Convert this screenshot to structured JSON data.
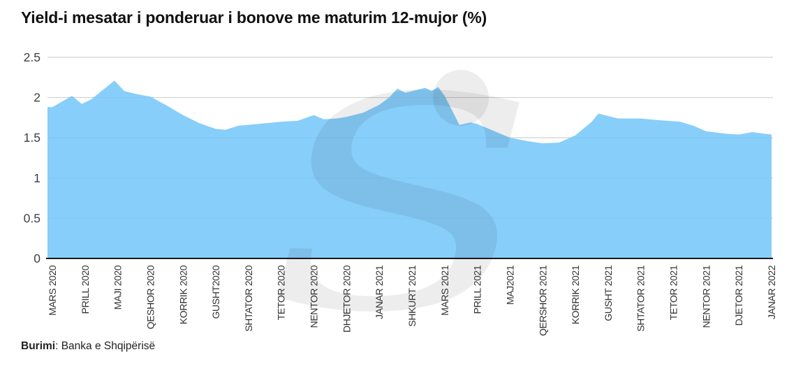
{
  "title": "Yield-i mesatar i ponderuar i bonove me maturim 12-mujor (%)",
  "source": {
    "label": "Burimi",
    "text": ": Banka e Shqipërisë"
  },
  "watermark_glyph": "S",
  "colors": {
    "area_fill": "#76C7F9",
    "gridline": "#d4d4d4",
    "axis_line": "#1a1a1a",
    "tick_text": "#404040",
    "title_text": "#111111"
  },
  "chart_data": {
    "type": "area",
    "title": "Yield-i mesatar i ponderuar i bonove me maturim 12-mujor (%)",
    "source": "Burimi: Banka e Shqipërisë",
    "grid": true,
    "legend": false,
    "ylim": [
      0,
      2.5
    ],
    "yticks": [
      0,
      0.5,
      1,
      1.5,
      2,
      2.5
    ],
    "ytick_labels": [
      "0",
      "0.5",
      "1",
      "1.5",
      "2",
      "2.5"
    ],
    "categories": [
      "MARS 2020",
      "PRILL 2020",
      "MAJI 2020",
      "QESHOR 2020",
      "KORRIK 2020",
      "GUSHT2020",
      "SHTATOR 2020",
      "TETOR 2020",
      "NENTOR 2020",
      "DHJETOR 2020",
      "JANAR 2021",
      "SHKURT 2021",
      "MARS 2021",
      "PRILL 2021",
      "MAJ2021",
      "QERSHOR 2021",
      "KORRIK 2021",
      "GUSHT 2021",
      "SHTATOR 2021",
      "TETOR 2021",
      "NENTOR 2021",
      "DJETOR 2021",
      "JANAR 2022"
    ],
    "values": [
      1.9,
      1.92,
      2.18,
      2.01,
      1.78,
      1.61,
      1.66,
      1.7,
      1.78,
      1.76,
      1.91,
      2.08,
      2.02,
      1.68,
      1.5,
      1.43,
      1.53,
      1.77,
      1.74,
      1.68,
      1.58,
      1.54,
      1.54
    ],
    "curve": [
      [
        0,
        1.88
      ],
      [
        0.3,
        1.95
      ],
      [
        0.6,
        2.02
      ],
      [
        0.9,
        1.92
      ],
      [
        1.2,
        1.98
      ],
      [
        1.5,
        2.08
      ],
      [
        1.9,
        2.21
      ],
      [
        2.2,
        2.08
      ],
      [
        2.6,
        2.04
      ],
      [
        3.0,
        2.01
      ],
      [
        3.5,
        1.9
      ],
      [
        4.0,
        1.78
      ],
      [
        4.5,
        1.68
      ],
      [
        5.0,
        1.61
      ],
      [
        5.3,
        1.6
      ],
      [
        5.7,
        1.65
      ],
      [
        6.0,
        1.66
      ],
      [
        6.5,
        1.68
      ],
      [
        7.0,
        1.7
      ],
      [
        7.5,
        1.71
      ],
      [
        8.0,
        1.78
      ],
      [
        8.3,
        1.73
      ],
      [
        8.7,
        1.74
      ],
      [
        9.0,
        1.76
      ],
      [
        9.5,
        1.81
      ],
      [
        10.0,
        1.91
      ],
      [
        10.3,
        2.0
      ],
      [
        10.55,
        2.11
      ],
      [
        10.8,
        2.06
      ],
      [
        11.1,
        2.09
      ],
      [
        11.4,
        2.12
      ],
      [
        11.6,
        2.08
      ],
      [
        11.8,
        2.13
      ],
      [
        12.0,
        2.02
      ],
      [
        12.45,
        1.66
      ],
      [
        12.8,
        1.69
      ],
      [
        13.0,
        1.67
      ],
      [
        13.3,
        1.62
      ],
      [
        13.7,
        1.55
      ],
      [
        14.0,
        1.5
      ],
      [
        14.5,
        1.46
      ],
      [
        15.0,
        1.43
      ],
      [
        15.5,
        1.44
      ],
      [
        16.0,
        1.53
      ],
      [
        16.5,
        1.7
      ],
      [
        16.7,
        1.8
      ],
      [
        17.0,
        1.77
      ],
      [
        17.3,
        1.74
      ],
      [
        18.0,
        1.74
      ],
      [
        18.5,
        1.72
      ],
      [
        19.2,
        1.7
      ],
      [
        19.6,
        1.65
      ],
      [
        20.0,
        1.58
      ],
      [
        20.6,
        1.55
      ],
      [
        21.0,
        1.54
      ],
      [
        21.4,
        1.57
      ],
      [
        22.0,
        1.54
      ]
    ]
  }
}
